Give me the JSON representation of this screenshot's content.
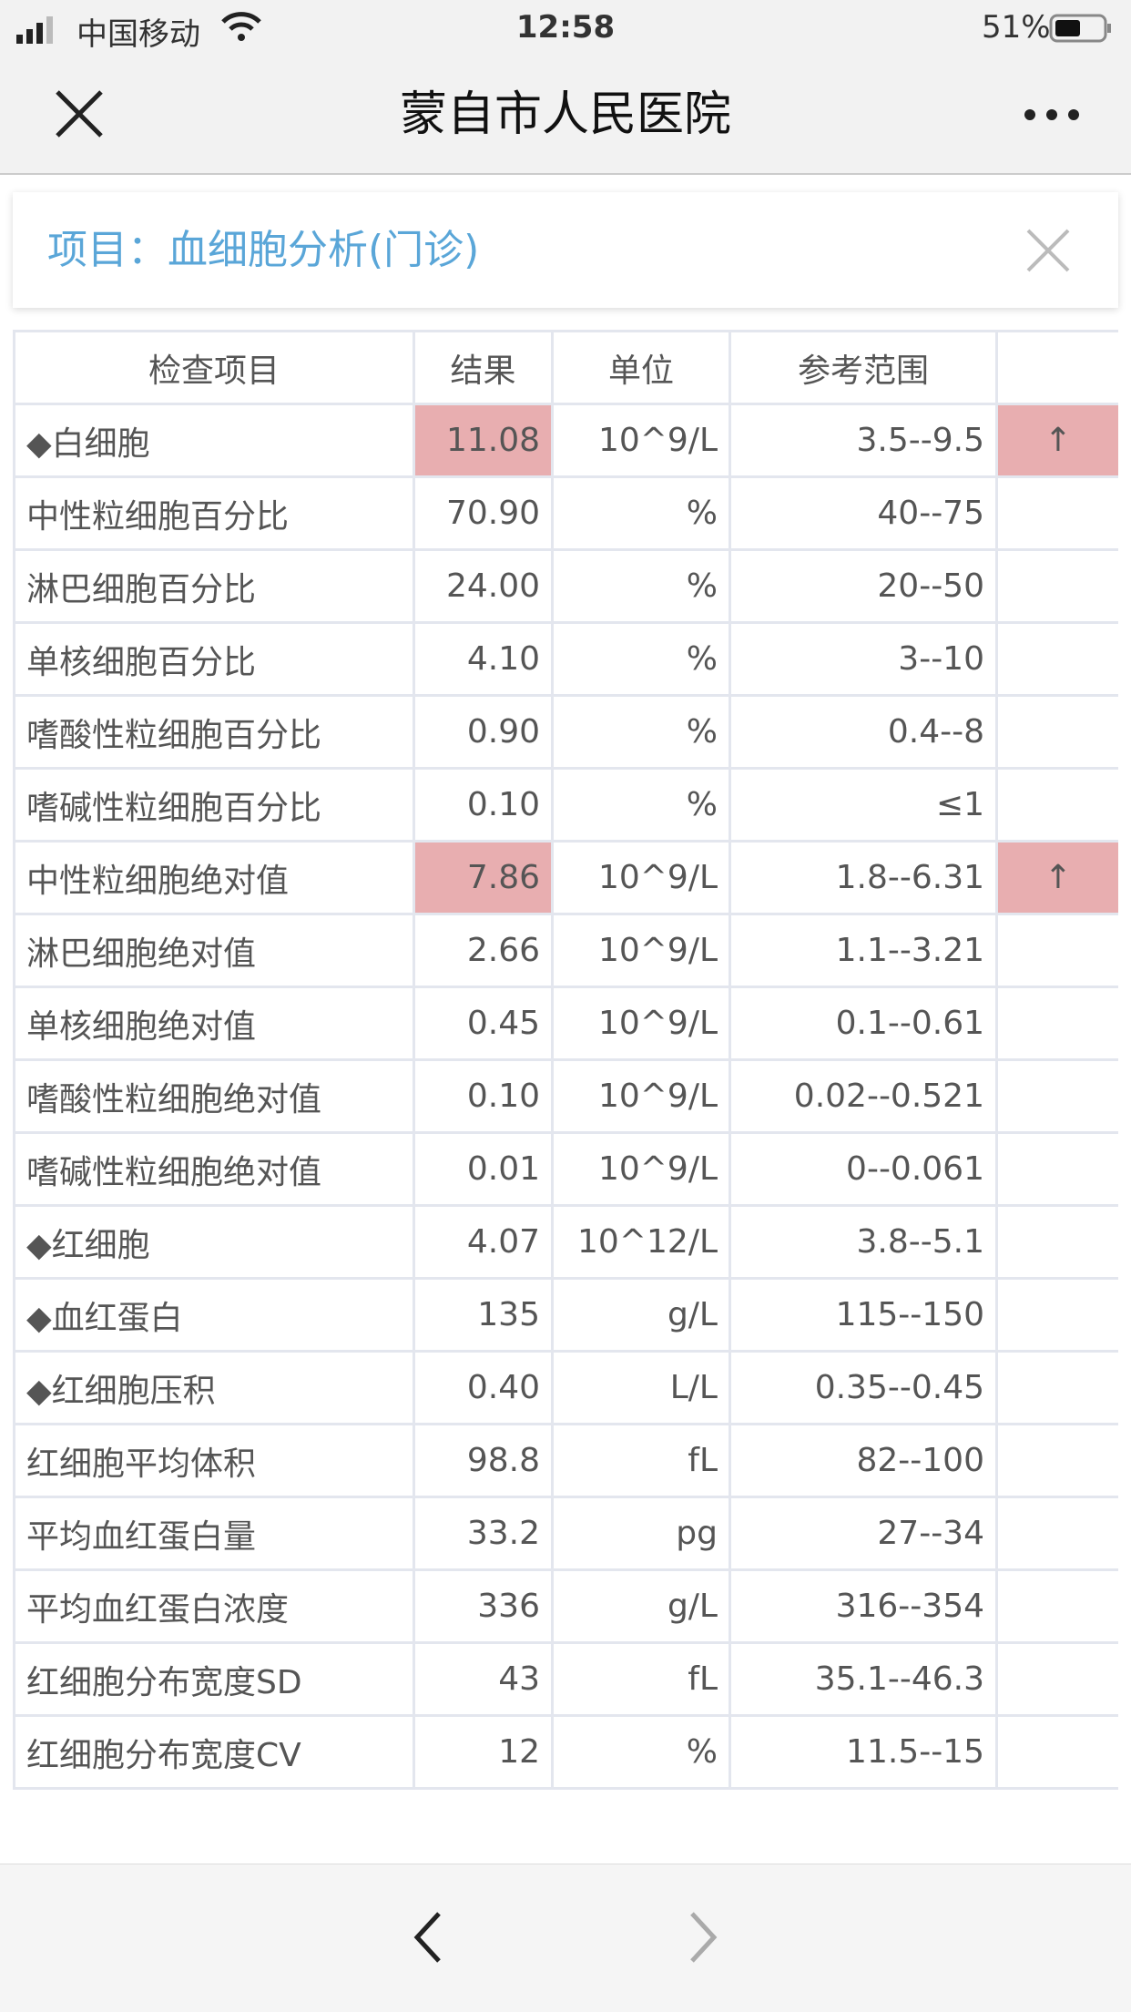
{
  "status_bar": {
    "carrier": "中国移动",
    "time": "12:58",
    "battery": "51%"
  },
  "nav": {
    "title": "蒙自市人民医院"
  },
  "card": {
    "label": "项目：",
    "value": "血细胞分析(门诊)"
  },
  "table": {
    "headers": [
      "检查项目",
      "结果",
      "单位",
      "参考范围"
    ],
    "rows": [
      {
        "item": "◆白细胞",
        "result": "11.08",
        "unit": "10^9/L",
        "range": "3.5--9.5",
        "flag": "↑"
      },
      {
        "item": "中性粒细胞百分比",
        "result": "70.90",
        "unit": "%",
        "range": "40--75"
      },
      {
        "item": "淋巴细胞百分比",
        "result": "24.00",
        "unit": "%",
        "range": "20--50"
      },
      {
        "item": "单核细胞百分比",
        "result": "4.10",
        "unit": "%",
        "range": "3--10"
      },
      {
        "item": "嗜酸性粒细胞百分比",
        "result": "0.90",
        "unit": "%",
        "range": "0.4--8"
      },
      {
        "item": "嗜碱性粒细胞百分比",
        "result": "0.10",
        "unit": "%",
        "range": "≤1"
      },
      {
        "item": "中性粒细胞绝对值",
        "result": "7.86",
        "unit": "10^9/L",
        "range": "1.8--6.31",
        "flag": "↑"
      },
      {
        "item": "淋巴细胞绝对值",
        "result": "2.66",
        "unit": "10^9/L",
        "range": "1.1--3.21"
      },
      {
        "item": "单核细胞绝对值",
        "result": "0.45",
        "unit": "10^9/L",
        "range": "0.1--0.61"
      },
      {
        "item": "嗜酸性粒细胞绝对值",
        "result": "0.10",
        "unit": "10^9/L",
        "range": "0.02--0.521"
      },
      {
        "item": "嗜碱性粒细胞绝对值",
        "result": "0.01",
        "unit": "10^9/L",
        "range": "0--0.061"
      },
      {
        "item": "◆红细胞",
        "result": "4.07",
        "unit": "10^12/L",
        "range": "3.8--5.1"
      },
      {
        "item": "◆血红蛋白",
        "result": "135",
        "unit": "g/L",
        "range": "115--150"
      },
      {
        "item": "◆红细胞压积",
        "result": "0.40",
        "unit": "L/L",
        "range": "0.35--0.45"
      },
      {
        "item": "红细胞平均体积",
        "result": "98.8",
        "unit": "fL",
        "range": "82--100"
      },
      {
        "item": "平均血红蛋白量",
        "result": "33.2",
        "unit": "pg",
        "range": "27--34"
      },
      {
        "item": "平均血红蛋白浓度",
        "result": "336",
        "unit": "g/L",
        "range": "316--354"
      },
      {
        "item": "红细胞分布宽度SD",
        "result": "43",
        "unit": "fL",
        "range": "35.1--46.3"
      },
      {
        "item": "红细胞分布宽度CV",
        "result": "12",
        "unit": "%",
        "range": "11.5--15"
      }
    ]
  }
}
